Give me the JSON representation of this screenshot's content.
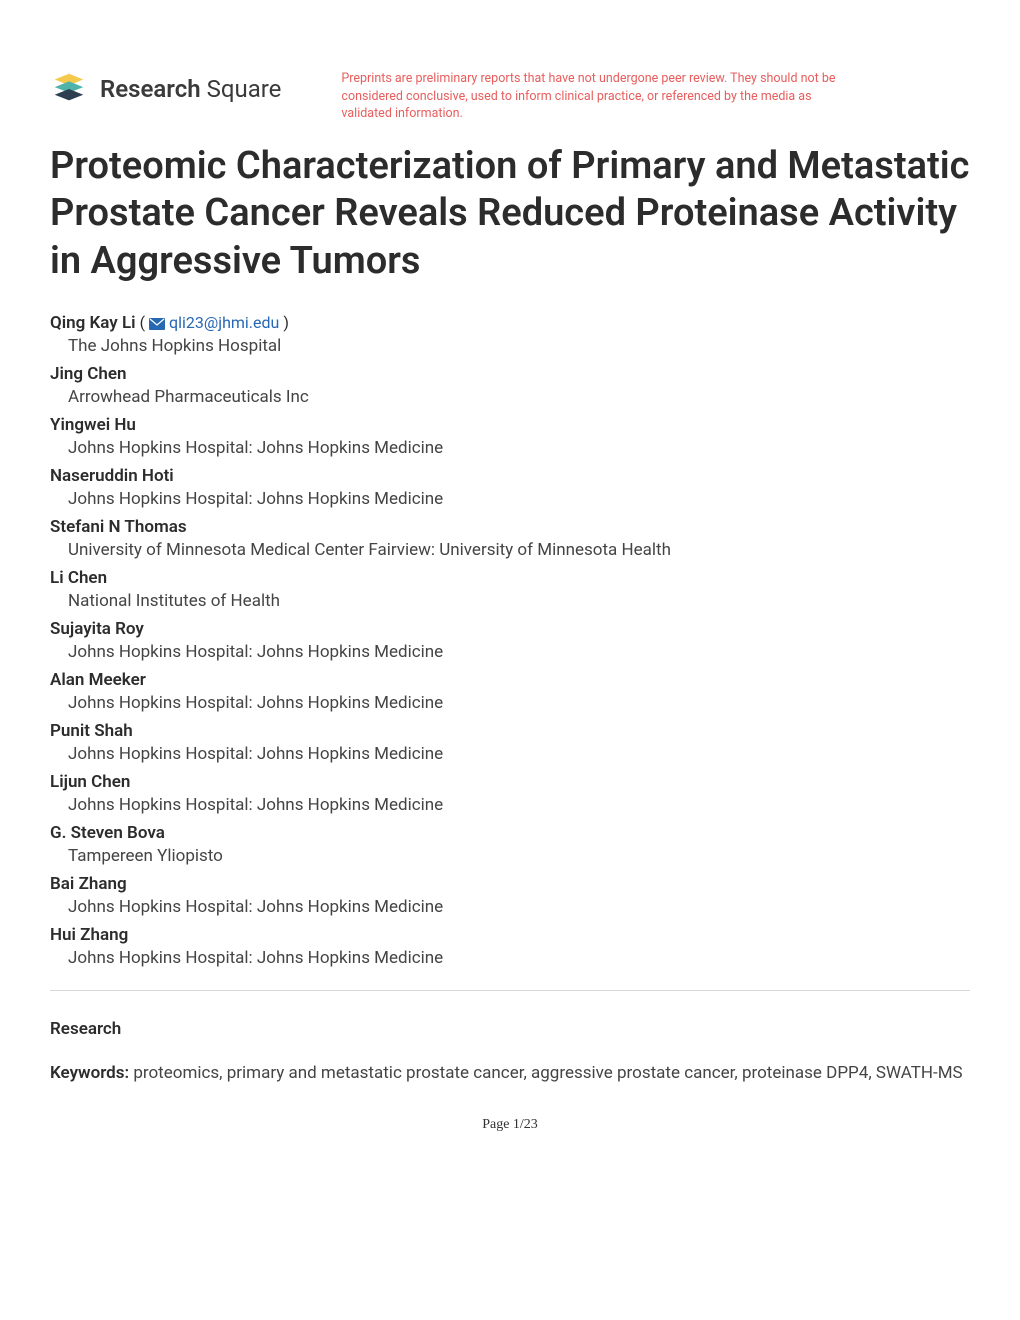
{
  "header": {
    "brand_bold": "Research",
    "brand_light": " Square",
    "disclaimer": "Preprints are preliminary reports that have not undergone peer review. They should not be considered conclusive, used to inform clinical practice, or referenced by the media as validated information.",
    "logo_colors": {
      "teal": "#4fb3a9",
      "navy": "#2c3e50",
      "yellow": "#f4c94c"
    }
  },
  "title": "Proteomic Characterization of Primary and Metastatic Prostate Cancer Reveals Reduced Proteinase Activity in Aggressive Tumors",
  "corresponding_author": {
    "name": "Qing Kay Li",
    "email": "qli23@jhmi.edu",
    "affiliation": "The Johns Hopkins Hospital"
  },
  "authors": [
    {
      "name": "Jing Chen",
      "affiliation": "Arrowhead Pharmaceuticals Inc"
    },
    {
      "name": "Yingwei Hu",
      "affiliation": "Johns Hopkins Hospital: Johns Hopkins Medicine"
    },
    {
      "name": "Naseruddin Hoti",
      "affiliation": "Johns Hopkins Hospital: Johns Hopkins Medicine"
    },
    {
      "name": "Stefani N Thomas",
      "affiliation": "University of Minnesota Medical Center Fairview: University of Minnesota Health"
    },
    {
      "name": "Li Chen",
      "affiliation": "National Institutes of Health"
    },
    {
      "name": "Sujayita Roy",
      "affiliation": "Johns Hopkins Hospital: Johns Hopkins Medicine"
    },
    {
      "name": "Alan Meeker",
      "affiliation": "Johns Hopkins Hospital: Johns Hopkins Medicine"
    },
    {
      "name": "Punit Shah",
      "affiliation": "Johns Hopkins Hospital: Johns Hopkins Medicine"
    },
    {
      "name": "Lijun Chen",
      "affiliation": "Johns Hopkins Hospital: Johns Hopkins Medicine"
    },
    {
      "name": "G. Steven Bova",
      "affiliation": "Tampereen Yliopisto"
    },
    {
      "name": "Bai Zhang",
      "affiliation": "Johns Hopkins Hospital: Johns Hopkins Medicine"
    },
    {
      "name": "Hui Zhang",
      "affiliation": "Johns Hopkins Hospital: Johns Hopkins Medicine"
    }
  ],
  "article_type": "Research",
  "keywords_label": "Keywords:",
  "keywords": " proteomics, primary and metastatic prostate cancer, aggressive prostate cancer, proteinase DPP4, SWATH-MS",
  "page_label": "Page 1/23",
  "colors": {
    "text_primary": "#2c2c2c",
    "text_body": "#444444",
    "link": "#2768b3",
    "disclaimer": "#e85d5d",
    "divider": "#d8d8d8",
    "background": "#ffffff"
  },
  "typography": {
    "title_size": 38,
    "body_size": 17,
    "disclaimer_size": 12.5,
    "logo_size": 24
  }
}
